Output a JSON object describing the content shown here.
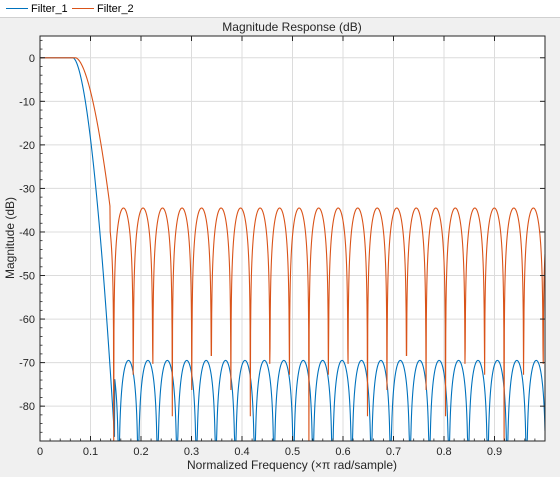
{
  "legend": {
    "items": [
      {
        "label": "Filter_1",
        "color": "#0072bd"
      },
      {
        "label": "Filter_2",
        "color": "#d95319"
      }
    ]
  },
  "chart_data": {
    "type": "line",
    "title": "Magnitude Response (dB)",
    "xlabel": "Normalized Frequency (×π rad/sample)",
    "ylabel": "Magnitude (dB)",
    "xlim": [
      0,
      1
    ],
    "ylim": [
      -88,
      5
    ],
    "grid": true,
    "legend_position": "top",
    "xticks": [
      0,
      0.1,
      0.2,
      0.3,
      0.4,
      0.5,
      0.6,
      0.7,
      0.8,
      0.9
    ],
    "xtick_labels": [
      "0",
      "0.1",
      "0.2",
      "0.3",
      "0.4",
      "0.5",
      "0.6",
      "0.7",
      "0.8",
      "0.9"
    ],
    "yticks": [
      0,
      -10,
      -20,
      -30,
      -40,
      -50,
      -60,
      -70,
      -80
    ],
    "ytick_labels": [
      "0",
      "-10",
      "-20",
      "-30",
      "-40",
      "-50",
      "-60",
      "-70",
      "-80"
    ],
    "series": [
      {
        "name": "Filter_1",
        "color": "#0072bd",
        "passband_edge": 0.065,
        "stopband_edge": 0.148,
        "transition_floor_db": -88,
        "sidelobe_peak_db": -69.5,
        "first_null": 0.156,
        "null_spacing": 0.03845
      },
      {
        "name": "Filter_2",
        "color": "#d95319",
        "passband_edge": 0.07,
        "stopband_edge": 0.139,
        "transition_floor_db": -34.5,
        "sidelobe_peak_db": -34.5,
        "first_null": 0.146,
        "null_spacing": 0.03865
      }
    ]
  }
}
